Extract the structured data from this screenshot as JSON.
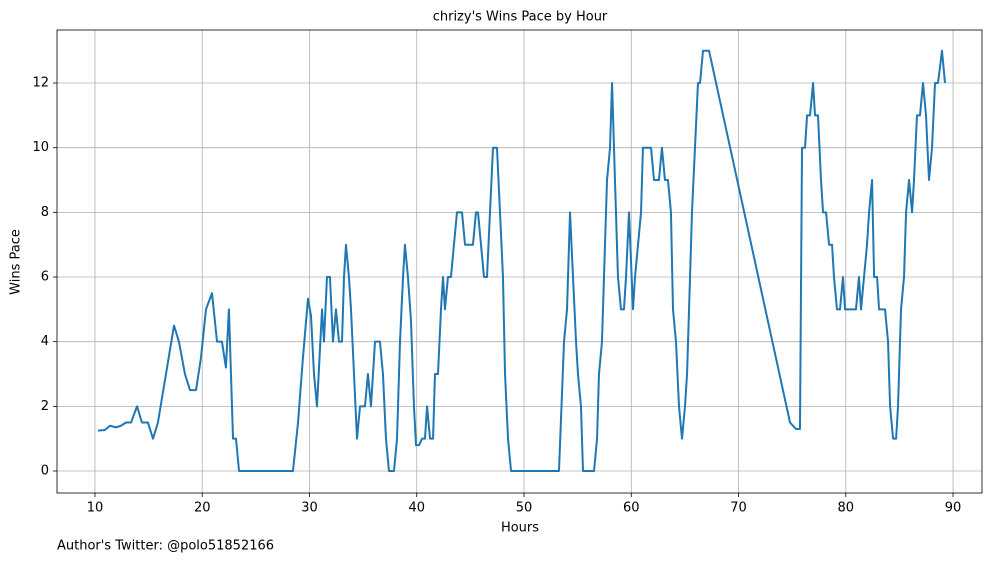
{
  "chart_data": {
    "type": "line",
    "title": "chrizy's Wins Pace by Hour",
    "xlabel": "Hours",
    "ylabel": "Wins Pace",
    "note": "Author's Twitter: @polo51852166",
    "color": "#1f77b4",
    "grid": true,
    "xlim": [
      6.46,
      92.7
    ],
    "ylim": [
      -0.68,
      13.64
    ],
    "xticks": [
      10,
      20,
      30,
      40,
      50,
      60,
      70,
      80,
      90
    ],
    "yticks": [
      0,
      2,
      4,
      6,
      8,
      10,
      12
    ],
    "x": [
      10.28,
      10.93,
      11.4,
      11.96,
      12.42,
      12.89,
      13.36,
      13.92,
      14.38,
      14.94,
      15.41,
      15.87,
      17.37,
      17.83,
      18.39,
      18.86,
      19.42,
      19.88,
      20.35,
      20.91,
      21.38,
      21.84,
      22.21,
      22.49,
      22.87,
      23.15,
      23.43,
      28.46,
      28.93,
      29.39,
      29.86,
      30.14,
      30.42,
      30.7,
      31.17,
      31.35,
      31.63,
      31.91,
      32.19,
      32.47,
      32.75,
      33.03,
      33.22,
      33.4,
      33.68,
      33.87,
      34.43,
      34.71,
      35.17,
      35.45,
      35.73,
      36.11,
      36.57,
      36.85,
      37.13,
      37.41,
      37.88,
      38.16,
      38.44,
      38.72,
      38.9,
      39.18,
      39.46,
      39.74,
      39.93,
      40.21,
      40.49,
      40.77,
      40.96,
      41.24,
      41.52,
      41.7,
      41.98,
      42.26,
      42.45,
      42.63,
      42.91,
      43.19,
      43.47,
      43.75,
      44.22,
      44.5,
      45.24,
      45.52,
      45.71,
      45.99,
      46.27,
      46.55,
      46.83,
      47.11,
      47.48,
      47.76,
      48.04,
      48.23,
      48.51,
      48.79,
      53.26,
      53.73,
      54.01,
      54.29,
      54.57,
      54.85,
      55.03,
      55.31,
      55.5,
      56.53,
      56.81,
      56.99,
      57.27,
      57.55,
      57.74,
      58.02,
      58.21,
      58.48,
      58.76,
      59.04,
      59.32,
      59.51,
      59.79,
      60.16,
      60.35,
      60.63,
      60.91,
      61.09,
      61.84,
      62.12,
      62.58,
      62.86,
      63.14,
      63.42,
      63.7,
      63.89,
      64.17,
      64.45,
      64.73,
      65.01,
      65.2,
      65.48,
      65.66,
      65.94,
      66.22,
      66.41,
      66.69,
      67.25,
      74.8,
      75.36,
      75.73,
      75.92,
      76.2,
      76.39,
      76.67,
      76.95,
      77.13,
      77.41,
      77.69,
      77.88,
      78.16,
      78.44,
      78.72,
      78.9,
      79.18,
      79.46,
      79.74,
      79.93,
      80.95,
      81.23,
      81.42,
      81.7,
      81.98,
      82.17,
      82.45,
      82.64,
      82.92,
      83.1,
      83.66,
      83.94,
      84.13,
      84.41,
      84.69,
      84.87,
      85.15,
      85.43,
      85.62,
      85.9,
      86.18,
      86.36,
      86.64,
      86.92,
      87.2,
      87.48,
      87.76,
      88.04,
      88.32,
      88.6,
      88.97,
      89.25
    ],
    "values": [
      1.25,
      1.27,
      1.4,
      1.35,
      1.4,
      1.5,
      1.5,
      2,
      1.5,
      1.5,
      1,
      1.5,
      4.5,
      4,
      3,
      2.5,
      2.5,
      3.5,
      5,
      5.5,
      4,
      4,
      3.2,
      5,
      1,
      1,
      0,
      0,
      1.5,
      3.5,
      5.33,
      4.8,
      3,
      2,
      5,
      4,
      6,
      6,
      4,
      5,
      4,
      4,
      6,
      7,
      6,
      5,
      1,
      2,
      2,
      3,
      2,
      4,
      4,
      3,
      1,
      0,
      0,
      1,
      4,
      6,
      7,
      6,
      4.67,
      2,
      0.8,
      0.8,
      1,
      1,
      2,
      1,
      1,
      3,
      3,
      5,
      6,
      5,
      6,
      6,
      7,
      8,
      8,
      7,
      7,
      8,
      8,
      7,
      6,
      6,
      8,
      10,
      10,
      8,
      6,
      3,
      1,
      0,
      0,
      4,
      5,
      8,
      6,
      4,
      3,
      2,
      0,
      0,
      1,
      3,
      4,
      7,
      9,
      10,
      12,
      9,
      6,
      5,
      5,
      6,
      8,
      5,
      6,
      7,
      8,
      10,
      10,
      9,
      9,
      10,
      9,
      9,
      8,
      5,
      4,
      2,
      1,
      2,
      3,
      6,
      8,
      10,
      12,
      12,
      13,
      13,
      1.5,
      1.3,
      1.3,
      10,
      10,
      11,
      11,
      12,
      11,
      11,
      9,
      8,
      8,
      7,
      7,
      6,
      5,
      5,
      6,
      5,
      5,
      6,
      5,
      6,
      7,
      8,
      9,
      6,
      6,
      5,
      5,
      4,
      2,
      1,
      1,
      2,
      5,
      6,
      8,
      9,
      8,
      9,
      11,
      11,
      12,
      11,
      9,
      10,
      12,
      12,
      13,
      12
    ]
  }
}
